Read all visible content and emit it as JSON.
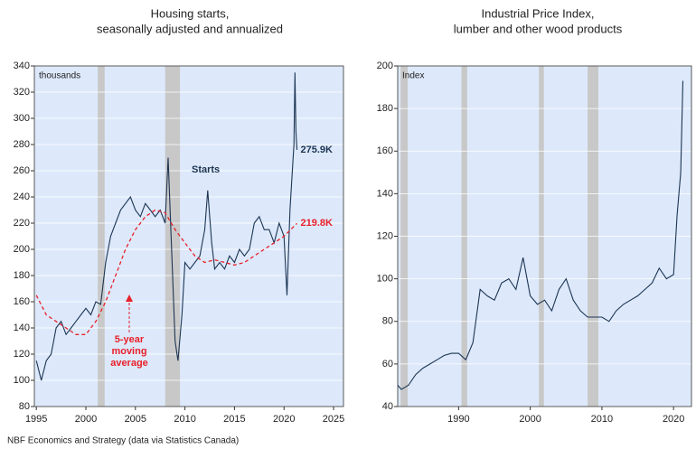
{
  "chart_data": [
    {
      "type": "line",
      "title": "Housing starts,",
      "subtitle": "seasonally adjusted and annualized",
      "y_label": "thousands",
      "xlim": [
        1994.8,
        2026
      ],
      "xticks": [
        1995,
        2000,
        2005,
        2010,
        2015,
        2020,
        2025
      ],
      "ylim": [
        80,
        340
      ],
      "yticks": [
        80,
        100,
        120,
        140,
        160,
        180,
        200,
        220,
        240,
        260,
        280,
        300,
        320,
        340
      ],
      "grid": true,
      "background": "#dde9fb",
      "shade_color": "#c8c8c8",
      "shaded_ranges": [
        [
          2001.2,
          2001.9
        ],
        [
          2008.0,
          2009.5
        ]
      ],
      "series": [
        {
          "name": "Starts",
          "color": "#1d3553",
          "dash": false,
          "end_label": "275.9K",
          "x": [
            1995,
            1995.5,
            1996,
            1996.5,
            1997,
            1997.5,
            1998,
            1998.5,
            1999,
            1999.5,
            2000,
            2000.5,
            2001,
            2001.5,
            2002,
            2002.5,
            2003,
            2003.5,
            2004,
            2004.5,
            2005,
            2005.5,
            2006,
            2006.5,
            2007,
            2007.5,
            2008,
            2008.3,
            2008.6,
            2009,
            2009.3,
            2009.7,
            2010,
            2010.5,
            2011,
            2011.5,
            2012,
            2012.3,
            2012.7,
            2013,
            2013.5,
            2014,
            2014.5,
            2015,
            2015.5,
            2016,
            2016.5,
            2017,
            2017.5,
            2018,
            2018.5,
            2019,
            2019.5,
            2020,
            2020.3,
            2020.6,
            2021,
            2021.1,
            2021.2,
            2021.3
          ],
          "values": [
            115,
            100,
            115,
            120,
            140,
            145,
            135,
            140,
            145,
            150,
            155,
            150,
            160,
            158,
            190,
            210,
            220,
            230,
            235,
            240,
            230,
            225,
            235,
            230,
            225,
            230,
            220,
            270,
            210,
            130,
            115,
            150,
            190,
            185,
            190,
            195,
            215,
            245,
            205,
            185,
            190,
            185,
            195,
            190,
            200,
            195,
            200,
            220,
            225,
            215,
            215,
            205,
            220,
            210,
            165,
            230,
            280,
            335,
            290,
            275.9
          ]
        },
        {
          "name": "5-year moving average",
          "color": "#e8202a",
          "dash": true,
          "end_label": "219.8K",
          "x": [
            1995,
            1996,
            1997,
            1998,
            1999,
            2000,
            2001,
            2002,
            2003,
            2004,
            2005,
            2006,
            2007,
            2008,
            2009,
            2010,
            2011,
            2012,
            2013,
            2014,
            2015,
            2016,
            2017,
            2018,
            2019,
            2020,
            2021.3
          ],
          "values": [
            165,
            150,
            145,
            140,
            135,
            135,
            145,
            160,
            180,
            200,
            215,
            225,
            230,
            228,
            215,
            205,
            195,
            190,
            192,
            190,
            188,
            190,
            195,
            200,
            205,
            210,
            219.8
          ]
        }
      ]
    },
    {
      "type": "line",
      "title": "Industrial Price Index,",
      "subtitle": "lumber and other wood products",
      "y_label": "Index",
      "xlim": [
        1981.5,
        2022.5
      ],
      "xticks": [
        1990,
        2000,
        2010,
        2020
      ],
      "ylim": [
        40,
        200
      ],
      "yticks": [
        40,
        60,
        80,
        100,
        120,
        140,
        160,
        180,
        200
      ],
      "grid": true,
      "background": "#dde9fb",
      "shade_color": "#c8c8c8",
      "shaded_ranges": [
        [
          1981.9,
          1982.9
        ],
        [
          1990.4,
          1991.2
        ],
        [
          2001.2,
          2001.9
        ],
        [
          2008.0,
          2009.5
        ]
      ],
      "series": [
        {
          "name": "Index",
          "color": "#1d3553",
          "dash": false,
          "x": [
            1981.5,
            1982,
            1983,
            1984,
            1985,
            1986,
            1987,
            1988,
            1989,
            1990,
            1991,
            1992,
            1993,
            1994,
            1995,
            1996,
            1997,
            1998,
            1999,
            2000,
            2001,
            2002,
            2003,
            2004,
            2005,
            2006,
            2007,
            2008,
            2009,
            2010,
            2011,
            2012,
            2013,
            2014,
            2015,
            2016,
            2017,
            2018,
            2019,
            2020,
            2020.5,
            2021,
            2021.3
          ],
          "values": [
            50,
            48,
            50,
            55,
            58,
            60,
            62,
            64,
            65,
            65,
            62,
            70,
            95,
            92,
            90,
            98,
            100,
            95,
            110,
            92,
            88,
            90,
            85,
            95,
            100,
            90,
            85,
            82,
            82,
            82,
            80,
            85,
            88,
            90,
            92,
            95,
            98,
            105,
            100,
            102,
            130,
            150,
            193
          ]
        }
      ]
    }
  ],
  "source": "NBF Economics and Strategy (data via Statistics Canada)"
}
